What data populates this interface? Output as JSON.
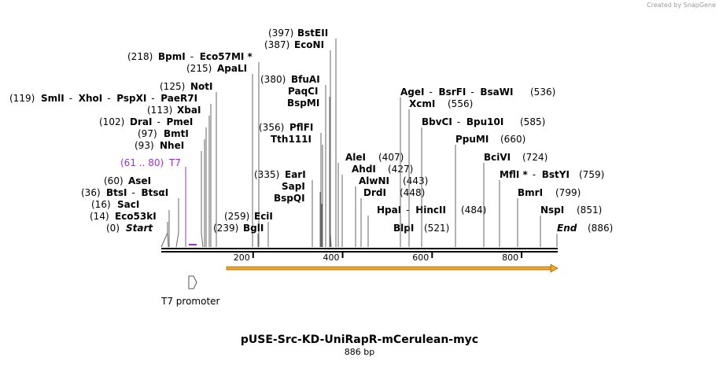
{
  "credit": {
    "prefix": "Created by",
    "brand": "SnapGene"
  },
  "title": "pUSE-Src-KD-UniRapR-mCerulean-myc",
  "subtitle": "886 bp",
  "colors": {
    "primer": "#9b30d0",
    "feature": "#f5a623",
    "feature_outline": "#7a4a00"
  },
  "sites": [
    {
      "id": "s_start",
      "pos": "(0)",
      "parts": [
        "Start"
      ],
      "style": "ital"
    },
    {
      "id": "s_eco53",
      "pos": "(14)",
      "parts": [
        "Eco53kI"
      ]
    },
    {
      "id": "s_sac",
      "pos": "(16)",
      "parts": [
        "SacI"
      ]
    },
    {
      "id": "s_bts",
      "pos": "(36)",
      "parts": [
        "BtsI",
        "BtsαI"
      ]
    },
    {
      "id": "s_ase",
      "pos": "(60)",
      "parts": [
        "AseI"
      ]
    },
    {
      "id": "s_nhe",
      "pos": "(93)",
      "parts": [
        "NheI"
      ]
    },
    {
      "id": "s_bmt",
      "pos": "(97)",
      "parts": [
        "BmtI"
      ]
    },
    {
      "id": "s_dra",
      "pos": "(102)",
      "parts": [
        "DraI",
        "PmeI"
      ]
    },
    {
      "id": "s_xba",
      "pos": "(113)",
      "parts": [
        "XbaI"
      ]
    },
    {
      "id": "s_sml",
      "pos": "(119)",
      "parts": [
        "SmlI",
        "XhoI",
        "PspXI",
        "PaeR7I"
      ]
    },
    {
      "id": "s_not",
      "pos": "(125)",
      "parts": [
        "NotI"
      ]
    },
    {
      "id": "s_apal",
      "pos": "(215)",
      "parts": [
        "ApaLI"
      ]
    },
    {
      "id": "s_bpm",
      "pos": "(218)",
      "parts": [
        "BpmI",
        "Eco57MI *"
      ]
    },
    {
      "id": "s_bgl",
      "pos": "(239)",
      "parts": [
        "BglI"
      ]
    },
    {
      "id": "s_eci",
      "pos": "(259)",
      "parts": [
        "EciI"
      ]
    },
    {
      "id": "s_ear",
      "pos": "(335)",
      "parts": [
        "EarI"
      ]
    },
    {
      "id": "s_sap",
      "pos": "",
      "parts": [
        "SapI"
      ]
    },
    {
      "id": "s_bspq",
      "pos": "",
      "parts": [
        "BspQI"
      ]
    },
    {
      "id": "s_pfl",
      "pos": "(356)",
      "parts": [
        "PflFI"
      ]
    },
    {
      "id": "s_tth",
      "pos": "",
      "parts": [
        "Tth111I"
      ]
    },
    {
      "id": "s_bfu",
      "pos": "(380)",
      "parts": [
        "BfuAI"
      ]
    },
    {
      "id": "s_paq",
      "pos": "",
      "parts": [
        "PaqCI"
      ]
    },
    {
      "id": "s_bspm",
      "pos": "",
      "parts": [
        "BspMI"
      ]
    },
    {
      "id": "s_econ",
      "pos": "(387)",
      "parts": [
        "EcoNI"
      ]
    },
    {
      "id": "s_bste",
      "pos": "(397)",
      "parts": [
        "BstEII"
      ]
    },
    {
      "id": "s_ale",
      "pos": "(407)",
      "parts": [
        "AleI"
      ]
    },
    {
      "id": "s_ahd",
      "pos": "(427)",
      "parts": [
        "AhdI"
      ]
    },
    {
      "id": "s_alw",
      "pos": "(443)",
      "parts": [
        "AlwNI"
      ]
    },
    {
      "id": "s_drd",
      "pos": "(448)",
      "parts": [
        "DrdI"
      ]
    },
    {
      "id": "s_hpa",
      "pos": "(484)",
      "parts": [
        "HpaI",
        "HincII"
      ]
    },
    {
      "id": "s_blp",
      "pos": "(521)",
      "parts": [
        "BlpI"
      ]
    },
    {
      "id": "s_age",
      "pos": "(536)",
      "parts": [
        "AgeI",
        "BsrFI",
        "BsaWI"
      ]
    },
    {
      "id": "s_xcm",
      "pos": "(556)",
      "parts": [
        "XcmI"
      ]
    },
    {
      "id": "s_bbv",
      "pos": "(585)",
      "parts": [
        "BbvCI",
        "Bpu10I"
      ]
    },
    {
      "id": "s_ppum",
      "pos": "(660)",
      "parts": [
        "PpuMI"
      ]
    },
    {
      "id": "s_bcivi",
      "pos": "(724)",
      "parts": [
        "BciVI"
      ]
    },
    {
      "id": "s_mfl",
      "pos": "(759)",
      "parts": [
        "MflI *",
        "BstYI"
      ]
    },
    {
      "id": "s_bmr",
      "pos": "(799)",
      "parts": [
        "BmrI"
      ]
    },
    {
      "id": "s_nsp",
      "pos": "(851)",
      "parts": [
        "NspI"
      ]
    },
    {
      "id": "s_end",
      "pos": "(886)",
      "parts": [
        "End"
      ],
      "style": "ital"
    }
  ],
  "primer": {
    "range": "(61 .. 80)",
    "name": "T7"
  },
  "feature": {
    "name": "T7 promoter"
  },
  "axis": {
    "ticks": [
      200,
      400,
      600,
      800
    ],
    "length": 886
  }
}
